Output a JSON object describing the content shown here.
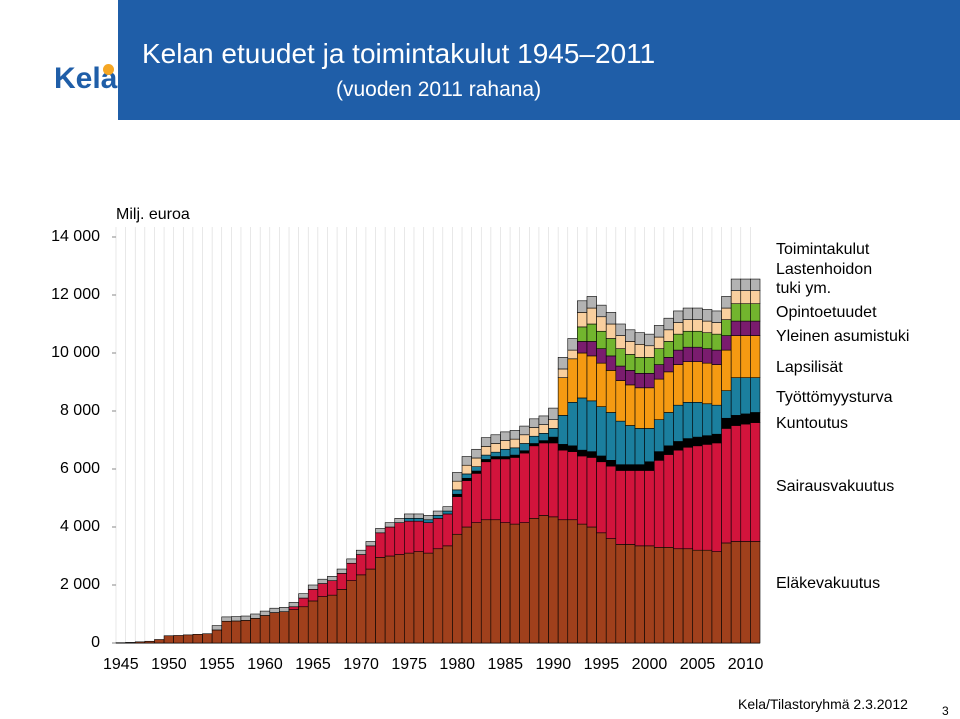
{
  "logo": "Kela",
  "footer": "Kela/Tilastoryhmä 2.3.2012",
  "page_number": "3",
  "chart_data": {
    "type": "stacked_bar",
    "title": "Kelan etuudet ja toimintakulut 1945–2011",
    "subtitle": "(vuoden 2011 rahana)",
    "y_label": "Milj. euroa",
    "x": [
      1945,
      1946,
      1947,
      1948,
      1949,
      1950,
      1951,
      1952,
      1953,
      1954,
      1955,
      1956,
      1957,
      1958,
      1959,
      1960,
      1961,
      1962,
      1963,
      1964,
      1965,
      1966,
      1967,
      1968,
      1969,
      1970,
      1971,
      1972,
      1973,
      1974,
      1975,
      1976,
      1977,
      1978,
      1979,
      1980,
      1981,
      1982,
      1983,
      1984,
      1985,
      1986,
      1987,
      1988,
      1989,
      1990,
      1991,
      1992,
      1993,
      1994,
      1995,
      1996,
      1997,
      1998,
      1999,
      2000,
      2001,
      2002,
      2003,
      2004,
      2005,
      2006,
      2007,
      2008,
      2009,
      2010,
      2011
    ],
    "xticks": [
      1945,
      1950,
      1955,
      1960,
      1965,
      1970,
      1975,
      1980,
      1985,
      1990,
      1995,
      2000,
      2005,
      2010
    ],
    "ylim": [
      0,
      14000
    ],
    "yticks": [
      0,
      {
        "value": 2000,
        "label": "2 000"
      },
      {
        "value": 4000,
        "label": "4 000"
      },
      {
        "value": 6000,
        "label": "6 000"
      },
      {
        "value": 8000,
        "label": "8 000"
      },
      {
        "value": 10000,
        "label": "10 000"
      },
      {
        "value": 12000,
        "label": "12 000"
      },
      {
        "value": 14000,
        "label": "14 000"
      }
    ],
    "grid": true,
    "series": [
      {
        "name": "Eläkevakuutus",
        "color": "#a0401c",
        "values": [
          10,
          20,
          40,
          60,
          120,
          250,
          260,
          280,
          300,
          320,
          450,
          750,
          760,
          780,
          850,
          950,
          1050,
          1080,
          1150,
          1250,
          1450,
          1600,
          1650,
          1850,
          2150,
          2350,
          2550,
          2950,
          3000,
          3050,
          3100,
          3150,
          3100,
          3250,
          3350,
          3750,
          4000,
          4150,
          4250,
          4250,
          4150,
          4100,
          4150,
          4300,
          4400,
          4350,
          4250,
          4250,
          4100,
          4000,
          3800,
          3600,
          3400,
          3400,
          3350,
          3350,
          3300,
          3300,
          3250,
          3250,
          3200,
          3200,
          3150,
          3450,
          3500,
          3500,
          3500
        ]
      },
      {
        "name": "Sairausvakuutus",
        "color": "#d2143c",
        "values": [
          0,
          0,
          0,
          0,
          0,
          0,
          0,
          0,
          0,
          0,
          0,
          0,
          0,
          0,
          0,
          0,
          0,
          0,
          100,
          300,
          400,
          450,
          500,
          550,
          600,
          700,
          800,
          850,
          1000,
          1100,
          1100,
          1050,
          1050,
          1050,
          1100,
          1300,
          1600,
          1700,
          2000,
          2100,
          2200,
          2300,
          2400,
          2500,
          2500,
          2550,
          2400,
          2350,
          2350,
          2400,
          2450,
          2500,
          2550,
          2550,
          2600,
          2600,
          3000,
          3200,
          3400,
          3500,
          3600,
          3650,
          3750,
          3950,
          4000,
          4050,
          4100
        ]
      },
      {
        "name": "Kuntoutus",
        "color": "#000000",
        "values": [
          0,
          0,
          0,
          0,
          0,
          0,
          0,
          0,
          0,
          0,
          0,
          0,
          0,
          0,
          0,
          0,
          0,
          0,
          0,
          0,
          0,
          0,
          0,
          0,
          0,
          0,
          0,
          0,
          0,
          0,
          0,
          0,
          0,
          0,
          0,
          80,
          80,
          80,
          80,
          80,
          80,
          80,
          80,
          80,
          80,
          200,
          200,
          200,
          200,
          200,
          200,
          200,
          200,
          200,
          200,
          300,
          300,
          300,
          300,
          300,
          300,
          300,
          300,
          350,
          350,
          350,
          350
        ]
      },
      {
        "name": "Työttömyysturva",
        "color": "#1b7f9e",
        "values": [
          0,
          0,
          0,
          0,
          0,
          0,
          0,
          0,
          0,
          0,
          0,
          0,
          0,
          0,
          0,
          0,
          0,
          0,
          0,
          0,
          0,
          0,
          0,
          0,
          0,
          0,
          0,
          0,
          0,
          0,
          100,
          100,
          100,
          100,
          100,
          150,
          150,
          150,
          150,
          150,
          250,
          250,
          250,
          250,
          250,
          300,
          1000,
          1500,
          1800,
          1750,
          1700,
          1650,
          1500,
          1350,
          1250,
          1150,
          1100,
          1150,
          1250,
          1250,
          1200,
          1100,
          1000,
          950,
          1300,
          1250,
          1200
        ]
      },
      {
        "name": "Lapsilisät",
        "color": "#f59a12",
        "values": [
          0,
          0,
          0,
          0,
          0,
          0,
          0,
          0,
          0,
          0,
          0,
          0,
          0,
          0,
          0,
          0,
          0,
          0,
          0,
          0,
          0,
          0,
          0,
          0,
          0,
          0,
          0,
          0,
          0,
          0,
          0,
          0,
          0,
          0,
          0,
          0,
          0,
          0,
          0,
          0,
          0,
          0,
          0,
          0,
          0,
          0,
          1300,
          1500,
          1550,
          1550,
          1500,
          1450,
          1400,
          1400,
          1400,
          1400,
          1400,
          1400,
          1400,
          1400,
          1400,
          1400,
          1400,
          1400,
          1450,
          1450,
          1450
        ]
      },
      {
        "name": "Yleinen asumistuki",
        "color": "#7a1c6e",
        "values": [
          0,
          0,
          0,
          0,
          0,
          0,
          0,
          0,
          0,
          0,
          0,
          0,
          0,
          0,
          0,
          0,
          0,
          0,
          0,
          0,
          0,
          0,
          0,
          0,
          0,
          0,
          0,
          0,
          0,
          0,
          0,
          0,
          0,
          0,
          0,
          0,
          0,
          0,
          0,
          0,
          0,
          0,
          0,
          0,
          0,
          0,
          0,
          0,
          400,
          500,
          500,
          500,
          500,
          500,
          500,
          500,
          500,
          500,
          500,
          500,
          500,
          500,
          500,
          500,
          500,
          500,
          500
        ]
      },
      {
        "name": "Opintoetuudet",
        "color": "#72b52e",
        "values": [
          0,
          0,
          0,
          0,
          0,
          0,
          0,
          0,
          0,
          0,
          0,
          0,
          0,
          0,
          0,
          0,
          0,
          0,
          0,
          0,
          0,
          0,
          0,
          0,
          0,
          0,
          0,
          0,
          0,
          0,
          0,
          0,
          0,
          0,
          0,
          0,
          0,
          0,
          0,
          0,
          0,
          0,
          0,
          0,
          0,
          0,
          0,
          0,
          500,
          600,
          600,
          600,
          600,
          550,
          550,
          550,
          550,
          550,
          550,
          550,
          550,
          550,
          550,
          550,
          600,
          600,
          600
        ]
      },
      {
        "name": "Lastenhoidon tuki ym.",
        "color": "#f9cf9e",
        "values": [
          0,
          0,
          0,
          0,
          0,
          0,
          0,
          0,
          0,
          0,
          0,
          0,
          0,
          0,
          0,
          0,
          0,
          0,
          0,
          0,
          0,
          0,
          0,
          0,
          0,
          0,
          0,
          0,
          0,
          0,
          0,
          0,
          0,
          0,
          0,
          300,
          300,
          300,
          300,
          300,
          300,
          300,
          300,
          300,
          300,
          300,
          300,
          300,
          500,
          550,
          500,
          500,
          450,
          450,
          450,
          400,
          400,
          400,
          400,
          400,
          400,
          400,
          400,
          400,
          450,
          450,
          450
        ]
      },
      {
        "name": "Toimintakulut",
        "color": "#b3b3b3",
        "values": [
          0,
          0,
          0,
          0,
          0,
          0,
          0,
          0,
          0,
          0,
          150,
          150,
          150,
          150,
          150,
          150,
          150,
          150,
          150,
          150,
          150,
          150,
          150,
          150,
          150,
          150,
          150,
          150,
          150,
          150,
          150,
          150,
          150,
          150,
          150,
          300,
          300,
          300,
          300,
          300,
          300,
          300,
          300,
          300,
          300,
          400,
          400,
          400,
          400,
          400,
          400,
          400,
          400,
          400,
          400,
          400,
          400,
          400,
          400,
          400,
          400,
          400,
          400,
          400,
          400,
          400,
          400
        ]
      }
    ]
  }
}
